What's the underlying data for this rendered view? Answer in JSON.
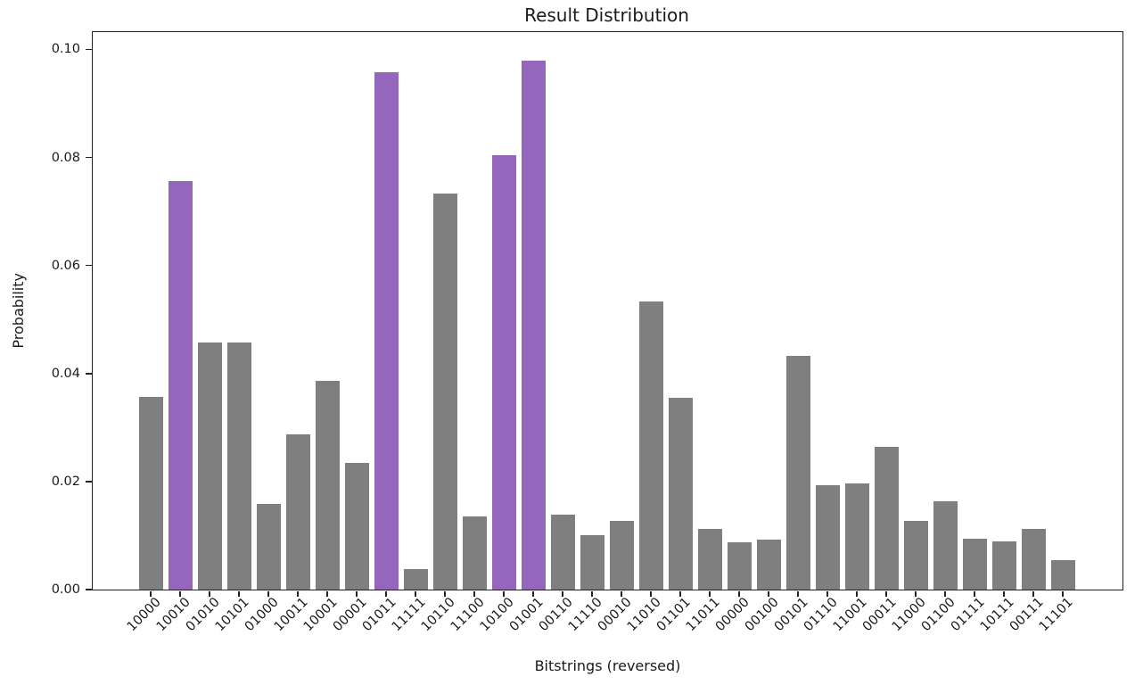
{
  "chart_data": {
    "type": "bar",
    "title": "Result Distribution",
    "xlabel": "Bitstrings (reversed)",
    "ylabel": "Probability",
    "categories": [
      "10000",
      "10010",
      "01010",
      "10101",
      "01000",
      "10011",
      "10001",
      "00001",
      "01011",
      "11111",
      "10110",
      "11100",
      "10100",
      "01001",
      "00110",
      "11110",
      "00010",
      "11010",
      "01101",
      "11011",
      "00000",
      "00100",
      "00101",
      "01110",
      "11001",
      "00011",
      "11000",
      "01100",
      "01111",
      "10111",
      "00111",
      "11101"
    ],
    "values": [
      0.0356,
      0.0756,
      0.0458,
      0.0458,
      0.0158,
      0.0288,
      0.0386,
      0.0234,
      0.0958,
      0.0038,
      0.0734,
      0.0136,
      0.0804,
      0.098,
      0.0139,
      0.0101,
      0.0127,
      0.0534,
      0.0355,
      0.0113,
      0.0088,
      0.0093,
      0.0433,
      0.0194,
      0.0197,
      0.0265,
      0.0127,
      0.0163,
      0.0094,
      0.009,
      0.0112,
      0.0054
    ],
    "highlighted_categories": [
      "10010",
      "01011",
      "10100",
      "01001"
    ],
    "yticks": [
      "0.00",
      "0.02",
      "0.04",
      "0.06",
      "0.08",
      "0.10"
    ],
    "ylim": [
      0,
      0.1032
    ],
    "xtick_rotation": 45,
    "grid": "off",
    "legend": "none",
    "colors": {
      "bar": "#7f7f7f",
      "highlight": "#9467bd",
      "text": "#1a1a1a",
      "spine": "#222222",
      "background": "#ffffff"
    }
  }
}
